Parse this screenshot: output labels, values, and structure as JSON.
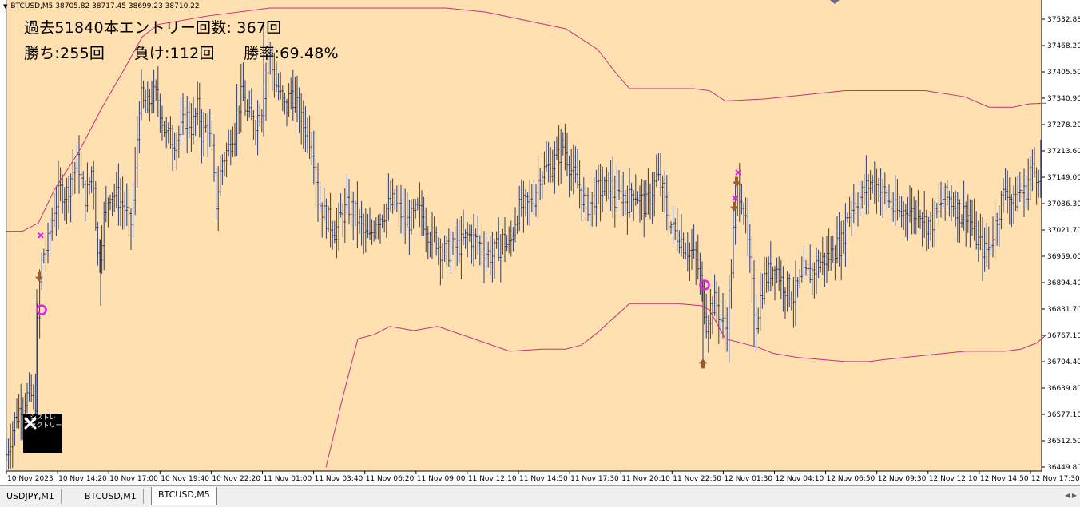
{
  "header": {
    "symbol_info": "BTCUSD,M5  38705.82 38717.45 38699.23 38710.22"
  },
  "stats": {
    "line1": "過去51840本エントリー回数: 367回",
    "wins": "勝ち:255回",
    "losses": "負け:112回",
    "winrate": "勝率:69.48%"
  },
  "logo": {
    "line1": "シストレ",
    "line2": "ファクトリー"
  },
  "colors": {
    "background": "#FFE0B0",
    "candle": "#2f3d6e",
    "band": "#c8307a",
    "marker_magenta": "#e020e0",
    "arrow_brown": "#9c5a2e"
  },
  "price_axis": [
    "37532.88",
    "37468.20",
    "37405.50",
    "37340.90",
    "37278.20",
    "37213.60",
    "37149.00",
    "37086.30",
    "37021.70",
    "36959.00",
    "36894.40",
    "36831.70",
    "36767.10",
    "36704.40",
    "36639.80",
    "36577.10",
    "36512.50",
    "36449.80"
  ],
  "time_axis": [
    "10 Nov 2023",
    "10 Nov 14:20",
    "10 Nov 17:00",
    "10 Nov 19:40",
    "10 Nov 22:20",
    "11 Nov 01:00",
    "11 Nov 03:40",
    "11 Nov 06:20",
    "11 Nov 09:00",
    "11 Nov 12:10",
    "11 Nov 14:50",
    "11 Nov 17:30",
    "11 Nov 20:10",
    "11 Nov 22:50",
    "12 Nov 01:30",
    "12 Nov 04:10",
    "12 Nov 06:50",
    "12 Nov 09:30",
    "12 Nov 12:10",
    "12 Nov 14:50",
    "12 Nov 17:30"
  ],
  "tabs": [
    {
      "label": "USDJPY,M1",
      "active": false
    },
    {
      "label": "BTCUSD,M1",
      "active": false
    },
    {
      "label": "BTCUSD,M5",
      "active": true
    }
  ],
  "chart_data": {
    "type": "candlestick",
    "symbol": "BTCUSD",
    "timeframe": "M5",
    "ylim": [
      36449.8,
      37560.0
    ],
    "close_path": [
      [
        0,
        36480
      ],
      [
        5,
        36520
      ],
      [
        10,
        36560
      ],
      [
        18,
        36600
      ],
      [
        25,
        36620
      ],
      [
        32,
        36620
      ],
      [
        36,
        36580
      ],
      [
        40,
        36860
      ],
      [
        45,
        36960
      ],
      [
        52,
        36990
      ],
      [
        60,
        37080
      ],
      [
        68,
        37120
      ],
      [
        75,
        37110
      ],
      [
        82,
        37160
      ],
      [
        90,
        37190
      ],
      [
        95,
        37120
      ],
      [
        100,
        37100
      ],
      [
        108,
        37180
      ],
      [
        115,
        36940
      ],
      [
        122,
        37050
      ],
      [
        130,
        37120
      ],
      [
        140,
        37100
      ],
      [
        150,
        37070
      ],
      [
        155,
        37020
      ],
      [
        160,
        37120
      ],
      [
        167,
        37350
      ],
      [
        175,
        37310
      ],
      [
        182,
        37350
      ],
      [
        190,
        37340
      ],
      [
        195,
        37290
      ],
      [
        200,
        37250
      ],
      [
        210,
        37240
      ],
      [
        218,
        37260
      ],
      [
        225,
        37300
      ],
      [
        232,
        37270
      ],
      [
        240,
        37320
      ],
      [
        245,
        37250
      ],
      [
        252,
        37280
      ],
      [
        258,
        37200
      ],
      [
        262,
        37080
      ],
      [
        270,
        37190
      ],
      [
        278,
        37220
      ],
      [
        285,
        37270
      ],
      [
        290,
        37320
      ],
      [
        295,
        37350
      ],
      [
        302,
        37300
      ],
      [
        310,
        37280
      ],
      [
        320,
        37320
      ],
      [
        328,
        37460
      ],
      [
        335,
        37390
      ],
      [
        342,
        37350
      ],
      [
        350,
        37310
      ],
      [
        356,
        37360
      ],
      [
        362,
        37330
      ],
      [
        370,
        37280
      ],
      [
        378,
        37260
      ],
      [
        385,
        37200
      ],
      [
        390,
        37100
      ],
      [
        398,
        37060
      ],
      [
        405,
        37040
      ],
      [
        412,
        37020
      ],
      [
        420,
        37060
      ],
      [
        428,
        37080
      ],
      [
        435,
        37070
      ],
      [
        442,
        37040
      ],
      [
        448,
        37010
      ],
      [
        455,
        37000
      ],
      [
        462,
        37050
      ],
      [
        470,
        37060
      ],
      [
        478,
        37080
      ],
      [
        485,
        37090
      ],
      [
        492,
        37070
      ],
      [
        500,
        37040
      ],
      [
        508,
        37050
      ],
      [
        515,
        37070
      ],
      [
        522,
        37050
      ],
      [
        530,
        37010
      ],
      [
        538,
        37000
      ],
      [
        545,
        36970
      ],
      [
        552,
        36970
      ],
      [
        560,
        36980
      ],
      [
        570,
        36990
      ],
      [
        578,
        37010
      ],
      [
        585,
        37000
      ],
      [
        592,
        36990
      ],
      [
        600,
        36970
      ],
      [
        608,
        36960
      ],
      [
        615,
        36980
      ],
      [
        622,
        37000
      ],
      [
        630,
        36980
      ],
      [
        638,
        37060
      ],
      [
        645,
        37080
      ],
      [
        652,
        37080
      ],
      [
        660,
        37100
      ],
      [
        668,
        37160
      ],
      [
        675,
        37170
      ],
      [
        682,
        37180
      ],
      [
        690,
        37200
      ],
      [
        696,
        37230
      ],
      [
        702,
        37200
      ],
      [
        710,
        37150
      ],
      [
        718,
        37120
      ],
      [
        725,
        37080
      ],
      [
        732,
        37090
      ],
      [
        740,
        37120
      ],
      [
        748,
        37120
      ],
      [
        755,
        37140
      ],
      [
        762,
        37090
      ],
      [
        770,
        37110
      ],
      [
        778,
        37090
      ],
      [
        785,
        37120
      ],
      [
        792,
        37100
      ],
      [
        800,
        37080
      ],
      [
        807,
        37110
      ],
      [
        814,
        37150
      ],
      [
        820,
        37130
      ],
      [
        826,
        37070
      ],
      [
        835,
        37020
      ],
      [
        842,
        37010
      ],
      [
        850,
        36980
      ],
      [
        858,
        36970
      ],
      [
        866,
        36930
      ],
      [
        872,
        36860
      ],
      [
        876,
        36800
      ],
      [
        882,
        36840
      ],
      [
        888,
        36850
      ],
      [
        895,
        36800
      ],
      [
        902,
        36780
      ],
      [
        908,
        36950
      ],
      [
        912,
        37080
      ],
      [
        916,
        37130
      ],
      [
        922,
        37090
      ],
      [
        928,
        36990
      ],
      [
        934,
        36870
      ],
      [
        938,
        36800
      ],
      [
        942,
        36840
      ],
      [
        948,
        36900
      ],
      [
        955,
        36920
      ],
      [
        962,
        36940
      ],
      [
        970,
        36900
      ],
      [
        978,
        36880
      ],
      [
        985,
        36860
      ],
      [
        992,
        36890
      ],
      [
        1000,
        36910
      ],
      [
        1008,
        36920
      ],
      [
        1015,
        36940
      ],
      [
        1022,
        36950
      ],
      [
        1030,
        36960
      ],
      [
        1037,
        36980
      ],
      [
        1045,
        36990
      ],
      [
        1052,
        37060
      ],
      [
        1060,
        37090
      ],
      [
        1068,
        37100
      ],
      [
        1075,
        37120
      ],
      [
        1082,
        37140
      ],
      [
        1090,
        37130
      ],
      [
        1098,
        37110
      ],
      [
        1105,
        37090
      ],
      [
        1112,
        37070
      ],
      [
        1120,
        37060
      ],
      [
        1128,
        37080
      ],
      [
        1135,
        37060
      ],
      [
        1142,
        37080
      ],
      [
        1150,
        37040
      ],
      [
        1158,
        37040
      ],
      [
        1165,
        37060
      ],
      [
        1172,
        37100
      ],
      [
        1180,
        37100
      ],
      [
        1188,
        37080
      ],
      [
        1195,
        37060
      ],
      [
        1202,
        37070
      ],
      [
        1210,
        37020
      ],
      [
        1218,
        36990
      ],
      [
        1225,
        36970
      ],
      [
        1230,
        36980
      ],
      [
        1238,
        37040
      ],
      [
        1245,
        37090
      ],
      [
        1252,
        37130
      ],
      [
        1260,
        37080
      ],
      [
        1268,
        37120
      ],
      [
        1275,
        37110
      ],
      [
        1282,
        37170
      ],
      [
        1290,
        37160
      ],
      [
        1297,
        37180
      ],
      [
        1302,
        37160
      ]
    ],
    "upper_band": [
      [
        0,
        37020
      ],
      [
        20,
        37020
      ],
      [
        40,
        37040
      ],
      [
        60,
        37120
      ],
      [
        90,
        37210
      ],
      [
        120,
        37320
      ],
      [
        150,
        37420
      ],
      [
        170,
        37490
      ],
      [
        190,
        37520
      ],
      [
        250,
        37540
      ],
      [
        330,
        37560
      ],
      [
        400,
        37560
      ],
      [
        550,
        37560
      ],
      [
        600,
        37550
      ],
      [
        650,
        37530
      ],
      [
        700,
        37510
      ],
      [
        740,
        37460
      ],
      [
        760,
        37410
      ],
      [
        780,
        37365
      ],
      [
        800,
        37365
      ],
      [
        860,
        37365
      ],
      [
        880,
        37360
      ],
      [
        900,
        37335
      ],
      [
        950,
        37340
      ],
      [
        1000,
        37350
      ],
      [
        1050,
        37360
      ],
      [
        1100,
        37360
      ],
      [
        1150,
        37360
      ],
      [
        1200,
        37345
      ],
      [
        1230,
        37320
      ],
      [
        1260,
        37320
      ],
      [
        1280,
        37328
      ],
      [
        1302,
        37330
      ]
    ],
    "lower_band": [
      [
        400,
        36449
      ],
      [
        420,
        36610
      ],
      [
        440,
        36760
      ],
      [
        460,
        36770
      ],
      [
        480,
        36790
      ],
      [
        510,
        36780
      ],
      [
        540,
        36790
      ],
      [
        570,
        36770
      ],
      [
        600,
        36750
      ],
      [
        630,
        36730
      ],
      [
        670,
        36735
      ],
      [
        700,
        36735
      ],
      [
        720,
        36745
      ],
      [
        740,
        36775
      ],
      [
        760,
        36810
      ],
      [
        780,
        36845
      ],
      [
        800,
        36845
      ],
      [
        840,
        36845
      ],
      [
        870,
        36840
      ],
      [
        880,
        36830
      ],
      [
        900,
        36760
      ],
      [
        940,
        36740
      ],
      [
        960,
        36725
      ],
      [
        990,
        36715
      ],
      [
        1020,
        36710
      ],
      [
        1050,
        36705
      ],
      [
        1080,
        36705
      ],
      [
        1100,
        36710
      ],
      [
        1150,
        36720
      ],
      [
        1200,
        36730
      ],
      [
        1250,
        36730
      ],
      [
        1270,
        36735
      ],
      [
        1290,
        36750
      ],
      [
        1302,
        36770
      ]
    ],
    "markers": [
      {
        "type": "circle",
        "x": 44,
        "y": 36830
      },
      {
        "type": "circle",
        "x": 874,
        "y": 36890
      },
      {
        "type": "arrow_up",
        "x": 872,
        "y": 36700
      },
      {
        "type": "arrow_down",
        "x": 41,
        "y": 36910
      },
      {
        "type": "arrow_down",
        "x": 911,
        "y": 37080
      },
      {
        "type": "arrow_down",
        "x": 914,
        "y": 37140
      },
      {
        "type": "cross",
        "x": 43,
        "y": 37010
      },
      {
        "type": "cross",
        "x": 912,
        "y": 37100
      },
      {
        "type": "cross",
        "x": 916,
        "y": 37162
      }
    ]
  }
}
